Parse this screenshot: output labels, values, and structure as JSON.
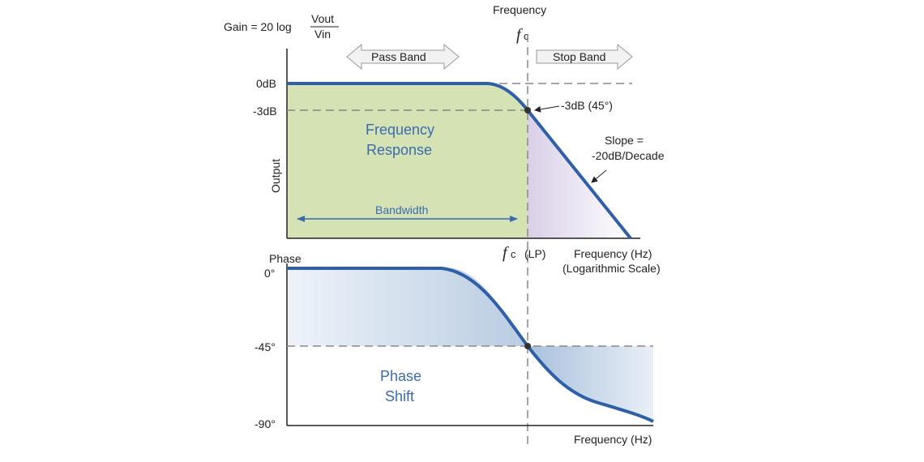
{
  "gain_label": {
    "prefix": "Gain = 20 log",
    "numerator": "Vout",
    "denominator": "Vin"
  },
  "top_frequency_label": "Frequency",
  "fc_symbol": "f",
  "fc_subscript": "c",
  "fc_lp_suffix": "(LP)",
  "pass_band_label": "Pass Band",
  "stop_band_label": "Stop Band",
  "amplitude_plot": {
    "y_tick_0db": "0dB",
    "y_tick_3db": "-3dB",
    "y_axis_label": "Output",
    "region_label_line1": "Frequency",
    "region_label_line2": "Response",
    "bandwidth_label": "Bandwidth",
    "cutoff_annotation": "-3dB (45°)",
    "slope_line1": "Slope =",
    "slope_line2": "-20dB/Decade",
    "x_axis_label_line1": "Frequency (Hz)",
    "x_axis_label_line2": "(Logarithmic Scale)"
  },
  "phase_plot": {
    "y_axis_label": "Phase",
    "y_tick_0": "0°",
    "y_tick_45": "-45°",
    "y_tick_90": "-90°",
    "region_label_line1": "Phase",
    "region_label_line2": "Shift",
    "x_axis_label": "Frequency (Hz)"
  },
  "colors": {
    "curve": "#2f5fa8",
    "passband_fill": "#d5e3b4",
    "stopband_fill": "#dcd3ea",
    "phase_fill": "#c5d4e6",
    "band_arrow_fill": "#f2f2f2",
    "dash": "#888888"
  }
}
